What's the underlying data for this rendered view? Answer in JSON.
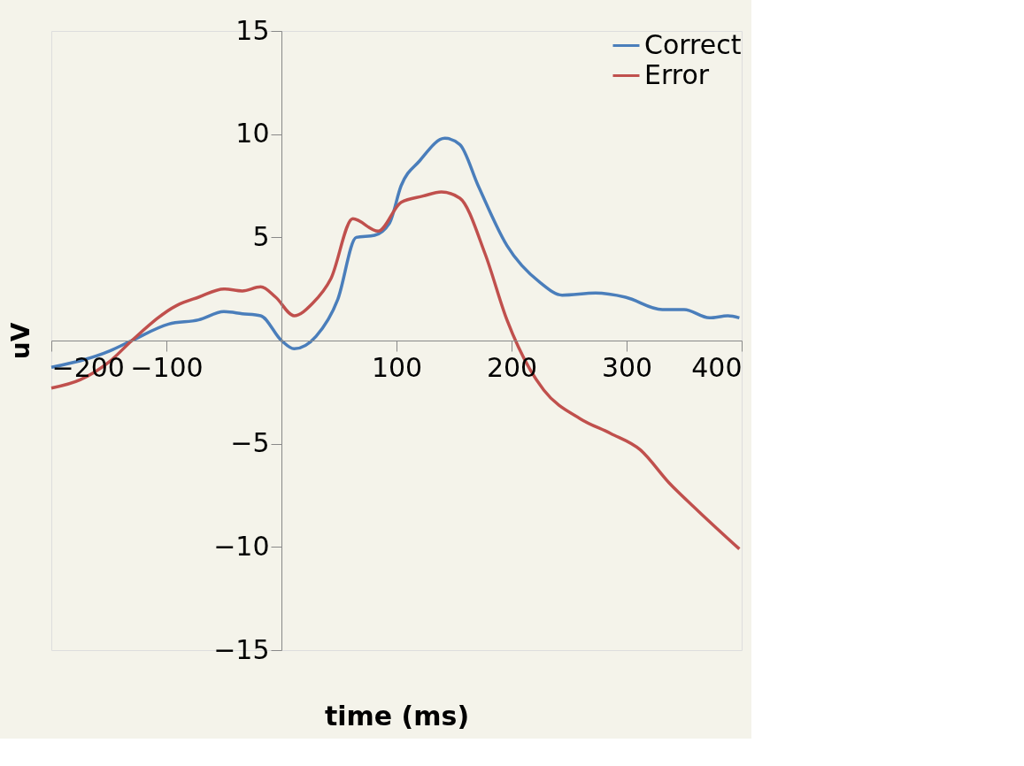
{
  "chart_data": {
    "type": "line",
    "xlabel": "time (ms)",
    "ylabel": "uV",
    "xlim": [
      -200,
      400
    ],
    "ylim": [
      -15,
      15
    ],
    "xticks": [
      -200,
      -100,
      100,
      200,
      300,
      400
    ],
    "yticks": [
      -15,
      -10,
      -5,
      5,
      10,
      15
    ],
    "grid": false,
    "legend": "top right",
    "marker": "none",
    "line_style": "solid",
    "series": [
      {
        "name": "Correct",
        "color": "#4a7ebb",
        "x": [
          -200,
          -149,
          -130,
          -98,
          -72,
          -50,
          -34,
          -18,
          0,
          11,
          30,
          49,
          65,
          81,
          94,
          104,
          120,
          142,
          155,
          171,
          196,
          225,
          244,
          273,
          299,
          331,
          350,
          372,
          388,
          398
        ],
        "values": [
          -1.3,
          -0.5,
          0,
          0.8,
          1.0,
          1.4,
          1.3,
          1.2,
          0,
          -0.4,
          0.2,
          2.0,
          5.0,
          5.1,
          5.7,
          7.5,
          8.7,
          9.8,
          9.5,
          7.5,
          4.6,
          2.8,
          2.2,
          2.3,
          2.1,
          1.5,
          1.5,
          1.1,
          1.2,
          1.1
        ]
      },
      {
        "name": "Error",
        "color": "#c0504d",
        "x": [
          -200,
          -175,
          -149,
          -130,
          -91,
          -72,
          -50,
          -34,
          -18,
          -5,
          11,
          27,
          43,
          62,
          84,
          104,
          123,
          139,
          155,
          177,
          196,
          216,
          228,
          260,
          286,
          312,
          337,
          363,
          398
        ],
        "values": [
          -2.3,
          -1.9,
          -1.0,
          0,
          1.7,
          2.1,
          2.5,
          2.4,
          2.6,
          2.1,
          1.2,
          1.8,
          3.0,
          5.9,
          5.3,
          6.7,
          7.0,
          7.2,
          6.9,
          4.2,
          1.0,
          -1.4,
          -2.4,
          -3.8,
          -4.5,
          -5.3,
          -6.9,
          -8.3,
          -10.1
        ]
      }
    ]
  }
}
